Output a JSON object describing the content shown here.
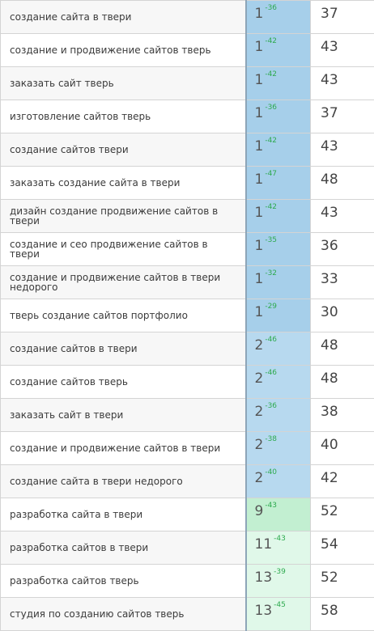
{
  "rows": [
    {
      "keyword": "создание сайта в твери",
      "position": "1",
      "delta": "-36",
      "value": "37",
      "tier": "top1"
    },
    {
      "keyword": "создание и продвижение сайтов тверь",
      "position": "1",
      "delta": "-42",
      "value": "43",
      "tier": "top1"
    },
    {
      "keyword": "заказать сайт тверь",
      "position": "1",
      "delta": "-42",
      "value": "43",
      "tier": "top1"
    },
    {
      "keyword": "изготовление сайтов тверь",
      "position": "1",
      "delta": "-36",
      "value": "37",
      "tier": "top1"
    },
    {
      "keyword": "создание сайтов твери",
      "position": "1",
      "delta": "-42",
      "value": "43",
      "tier": "top1"
    },
    {
      "keyword": "заказать создание сайта в твери",
      "position": "1",
      "delta": "-47",
      "value": "48",
      "tier": "top1"
    },
    {
      "keyword": "дизайн создание продвижение сайтов в твери",
      "position": "1",
      "delta": "-42",
      "value": "43",
      "tier": "top1"
    },
    {
      "keyword": "создание и сео продвижение сайтов в твери",
      "position": "1",
      "delta": "-35",
      "value": "36",
      "tier": "top1"
    },
    {
      "keyword": "создание и продвижение сайтов в твери недорого",
      "position": "1",
      "delta": "-32",
      "value": "33",
      "tier": "top1"
    },
    {
      "keyword": "тверь создание сайтов портфолио",
      "position": "1",
      "delta": "-29",
      "value": "30",
      "tier": "top1"
    },
    {
      "keyword": "создание сайтов в твери",
      "position": "2",
      "delta": "-46",
      "value": "48",
      "tier": "top2"
    },
    {
      "keyword": "создание сайтов тверь",
      "position": "2",
      "delta": "-46",
      "value": "48",
      "tier": "top2"
    },
    {
      "keyword": "заказать сайт в твери",
      "position": "2",
      "delta": "-36",
      "value": "38",
      "tier": "top2"
    },
    {
      "keyword": "создание и продвижение сайтов в твери",
      "position": "2",
      "delta": "-38",
      "value": "40",
      "tier": "top2"
    },
    {
      "keyword": "создание сайта в твери недорого",
      "position": "2",
      "delta": "-40",
      "value": "42",
      "tier": "top2"
    },
    {
      "keyword": "разработка сайта в твери",
      "position": "9",
      "delta": "-43",
      "value": "52",
      "tier": "top9"
    },
    {
      "keyword": "разработка сайтов в твери",
      "position": "11",
      "delta": "-43",
      "value": "54",
      "tier": "top13"
    },
    {
      "keyword": "разработка сайтов тверь",
      "position": "13",
      "delta": "-39",
      "value": "52",
      "tier": "top13"
    },
    {
      "keyword": "студия по созданию сайтов тверь",
      "position": "13",
      "delta": "-45",
      "value": "58",
      "tier": "top13"
    }
  ]
}
